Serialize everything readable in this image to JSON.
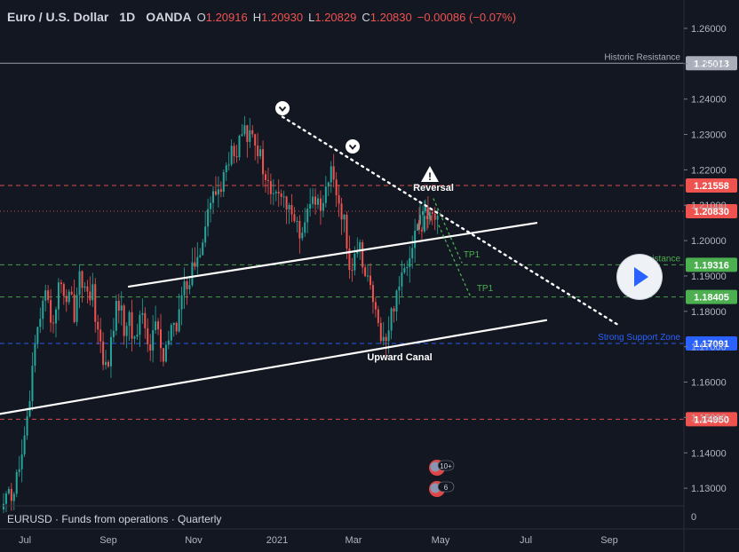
{
  "header": {
    "symbol_name": "Euro / U.S. Dollar",
    "interval": "1D",
    "exchange": "OANDA",
    "open_label": "O",
    "open": "1.20916",
    "high_label": "H",
    "high": "1.20930",
    "low_label": "L",
    "low": "1.20829",
    "close_label": "C",
    "close": "1.20830",
    "change": "−0.00086 (−0.07%)"
  },
  "subpane": {
    "label": "EURUSD · Funds from operations · Quarterly",
    "zero_tick": "0"
  },
  "colors": {
    "background": "#131722",
    "up_candle": "#26a69a",
    "down_candle": "#ef5350",
    "text": "#d1d4dc",
    "resistance_line": "#ef5350",
    "support_line": "#2962ff",
    "tp_line": "#4caf50"
  },
  "chart_data": {
    "type": "candlestick",
    "symbol": "EURUSD",
    "x_axis": {
      "ticks": [
        "Jul",
        "Sep",
        "Nov",
        "2021",
        "Mar",
        "May",
        "Jul",
        "Sep"
      ]
    },
    "y_axis": {
      "range": [
        1.125,
        1.265
      ],
      "ticks": [
        1.13,
        1.14,
        1.15,
        1.16,
        1.17,
        1.18,
        1.19,
        1.2,
        1.21,
        1.22,
        1.23,
        1.24,
        1.25,
        1.26
      ],
      "tick_labels": [
        "1.13000",
        "1.14000",
        "1.15000",
        "1.16000",
        "1.17000",
        "1.18000",
        "1.19000",
        "1.20000",
        "1.21000",
        "1.22000",
        "1.23000",
        "1.24000",
        "1.25000",
        "1.26000"
      ]
    },
    "price_path": [
      [
        1.124,
        1.132,
        1.127,
        1.134,
        1.137,
        1.145,
        1.158,
        1.172,
        1.178,
        1.186,
        1.182,
        1.176,
        1.184,
        1.189,
        1.181,
        1.185,
        1.179,
        1.192,
        1.187,
        1.182,
        1.185,
        1.176,
        1.17,
        1.163,
        1.169,
        1.179,
        1.183,
        1.175,
        1.179,
        1.172,
        1.174,
        1.181,
        1.175,
        1.169,
        1.178,
        1.173,
        1.164,
        1.171,
        1.178,
        1.176,
        1.184,
        1.187,
        1.191,
        1.193,
        1.197,
        1.204,
        1.209,
        1.212,
        1.214,
        1.216,
        1.22,
        1.225,
        1.222,
        1.227,
        1.231,
        1.229,
        1.233,
        1.226,
        1.222,
        1.216,
        1.214,
        1.211,
        1.215,
        1.21,
        1.207,
        1.211,
        1.204,
        1.199,
        1.206,
        1.21,
        1.213,
        1.209,
        1.214,
        1.217,
        1.219,
        1.213,
        1.208,
        1.202,
        1.191,
        1.194,
        1.197,
        1.194,
        1.189,
        1.182,
        1.176,
        1.174,
        1.171,
        1.178,
        1.184,
        1.189,
        1.193,
        1.196,
        1.201,
        1.204,
        1.209,
        1.207,
        1.2083
      ],
      [
        1.2016,
        1.2043,
        1.2047,
        1.2023,
        1.2055,
        1.2073,
        1.2071,
        1.2091,
        1.2083
      ]
    ],
    "horizontal_levels": [
      {
        "name": "Historic Resistance",
        "price": 1.25013,
        "label": "1.25013",
        "style": "solid",
        "color": "#a9aeba"
      },
      {
        "name": "",
        "price": 1.21558,
        "label": "1.21558",
        "style": "dashed",
        "color": "#ef5350"
      },
      {
        "name": "",
        "price": 1.2083,
        "label": "1.20830",
        "style": "dotted",
        "color": "#ef5350"
      },
      {
        "name": "Resistance",
        "price": 1.19316,
        "label": "1.19316",
        "style": "dashed",
        "color": "#4caf50"
      },
      {
        "name": "",
        "price": 1.18405,
        "label": "1.18405",
        "style": "dashed",
        "color": "#4caf50"
      },
      {
        "name": "Strong Support Zone",
        "price": 1.17091,
        "label": "1.17091",
        "style": "dashed",
        "color": "#2962ff"
      },
      {
        "name": "",
        "price": 1.1495,
        "label": "1.14950",
        "style": "dashed",
        "color": "#ef5350"
      }
    ],
    "trendlines": [
      {
        "name": "Upward Canal upper",
        "points": [
          [
            "Sep",
            1.187
          ],
          [
            "May",
            1.205
          ]
        ],
        "style": "solid"
      },
      {
        "name": "Upward Canal lower",
        "points": [
          [
            "Jun",
            1.151
          ],
          [
            "May",
            1.1775
          ]
        ],
        "style": "solid"
      },
      {
        "name": "Downtrend",
        "points": [
          [
            "Jan",
            1.235
          ],
          [
            "Jun",
            1.176
          ]
        ],
        "style": "dotted"
      },
      {
        "name": "TP1 path a",
        "points": [
          [
            "Apr",
            1.208
          ],
          [
            "Apr",
            1.193
          ]
        ],
        "style": "dotted",
        "color": "#4caf50"
      },
      {
        "name": "TP1 path b",
        "points": [
          [
            "Apr",
            1.2
          ],
          [
            "Apr",
            1.184
          ]
        ],
        "style": "dotted",
        "color": "#4caf50"
      }
    ],
    "annotations": [
      {
        "text": "Reversal"
      },
      {
        "text": "Upward Canal"
      },
      {
        "text": "TP1"
      },
      {
        "text": "TP1"
      }
    ],
    "event_markers": [
      {
        "count": "10+"
      },
      {
        "count": "6"
      }
    ]
  }
}
